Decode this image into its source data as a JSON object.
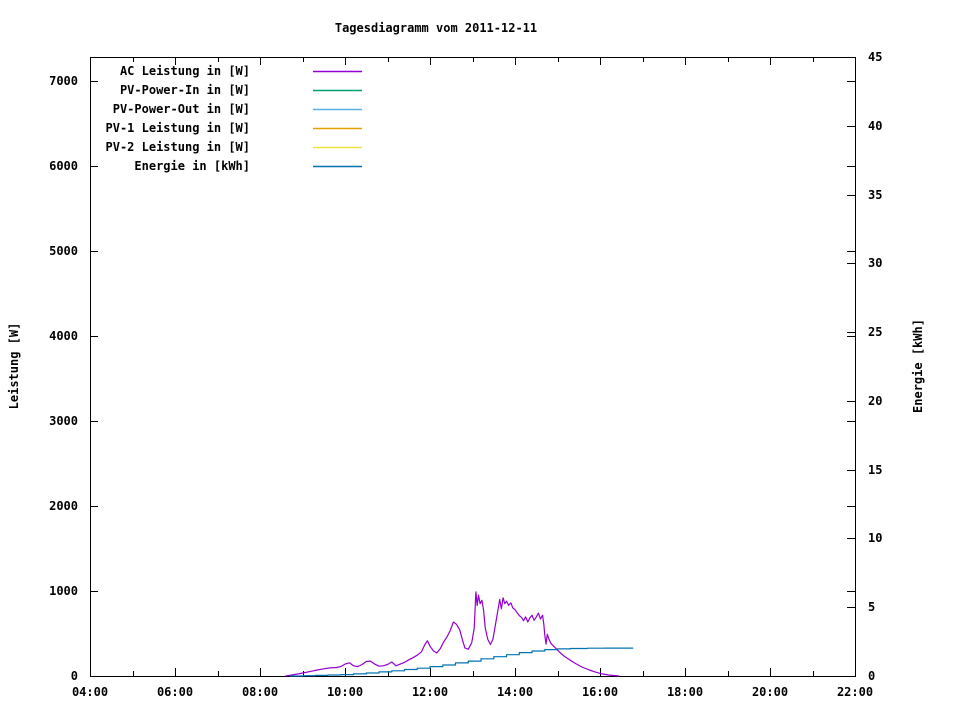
{
  "title": "Tagesdiagramm vom 2011-12-11",
  "axes": {
    "x": {
      "major_tick_labels": [
        "04:00",
        "06:00",
        "08:00",
        "10:00",
        "12:00",
        "14:00",
        "16:00",
        "18:00",
        "20:00",
        "22:00"
      ],
      "major_tick_hours": [
        4,
        6,
        8,
        10,
        12,
        14,
        16,
        18,
        20,
        22
      ],
      "minor_tick_hours": [
        5,
        7,
        9,
        11,
        13,
        15,
        17,
        19,
        21
      ]
    },
    "y_left": {
      "label": "Leistung [W]",
      "tick_values": [
        0,
        1000,
        2000,
        3000,
        4000,
        5000,
        6000,
        7000
      ],
      "tick_labels": [
        "0",
        "1000",
        "2000",
        "3000",
        "4000",
        "5000",
        "6000",
        "7000"
      ],
      "frame_top_value": 7282
    },
    "y_right": {
      "label": "Energie [kWh]",
      "tick_values": [
        0,
        5,
        10,
        15,
        20,
        25,
        30,
        35,
        40,
        45
      ],
      "tick_labels": [
        "0",
        "5",
        "10",
        "15",
        "20",
        "25",
        "30",
        "35",
        "40",
        "45"
      ],
      "frame_top_value": 45
    }
  },
  "legend": {
    "items": [
      {
        "label": "AC Leistung in [W]",
        "color": "#9400d3"
      },
      {
        "label": "PV-Power-In in [W]",
        "color": "#009e73"
      },
      {
        "label": "PV-Power-Out in [W]",
        "color": "#56b4e9"
      },
      {
        "label": "PV-1 Leistung in [W]",
        "color": "#e69f00"
      },
      {
        "label": "PV-2 Leistung in [W]",
        "color": "#f0e442"
      },
      {
        "label": "Energie in [kWh]",
        "color": "#0072b2"
      }
    ]
  },
  "chart_data": {
    "type": "line",
    "title": "Tagesdiagramm vom 2011-12-11",
    "xlabel": "",
    "x_unit": "hour_of_day",
    "xlim": [
      4,
      22
    ],
    "ylabel_left": "Leistung [W]",
    "ylim_left": [
      0,
      7282
    ],
    "ylabel_right": "Energie [kWh]",
    "ylim_right": [
      0,
      45
    ],
    "grid": false,
    "legend_position": "top-left-inside",
    "series": [
      {
        "name": "AC Leistung in [W]",
        "color": "#9400d3",
        "axis": "left",
        "step": false,
        "points": [
          [
            8.6,
            0
          ],
          [
            8.75,
            12
          ],
          [
            8.9,
            25
          ],
          [
            9.05,
            40
          ],
          [
            9.2,
            55
          ],
          [
            9.35,
            70
          ],
          [
            9.5,
            85
          ],
          [
            9.65,
            95
          ],
          [
            9.8,
            100
          ],
          [
            9.9,
            110
          ],
          [
            10.0,
            140
          ],
          [
            10.1,
            155
          ],
          [
            10.2,
            120
          ],
          [
            10.3,
            110
          ],
          [
            10.4,
            135
          ],
          [
            10.5,
            170
          ],
          [
            10.6,
            175
          ],
          [
            10.7,
            140
          ],
          [
            10.8,
            115
          ],
          [
            10.9,
            120
          ],
          [
            11.0,
            135
          ],
          [
            11.1,
            165
          ],
          [
            11.2,
            120
          ],
          [
            11.3,
            140
          ],
          [
            11.4,
            160
          ],
          [
            11.5,
            190
          ],
          [
            11.6,
            215
          ],
          [
            11.7,
            245
          ],
          [
            11.8,
            285
          ],
          [
            11.88,
            370
          ],
          [
            11.94,
            415
          ],
          [
            12.0,
            350
          ],
          [
            12.08,
            295
          ],
          [
            12.16,
            270
          ],
          [
            12.24,
            320
          ],
          [
            12.32,
            400
          ],
          [
            12.4,
            460
          ],
          [
            12.48,
            540
          ],
          [
            12.55,
            635
          ],
          [
            12.62,
            610
          ],
          [
            12.7,
            545
          ],
          [
            12.76,
            430
          ],
          [
            12.82,
            330
          ],
          [
            12.9,
            315
          ],
          [
            12.98,
            390
          ],
          [
            13.04,
            560
          ],
          [
            13.08,
            990
          ],
          [
            13.11,
            830
          ],
          [
            13.14,
            950
          ],
          [
            13.18,
            850
          ],
          [
            13.22,
            890
          ],
          [
            13.26,
            780
          ],
          [
            13.3,
            560
          ],
          [
            13.36,
            430
          ],
          [
            13.42,
            370
          ],
          [
            13.48,
            430
          ],
          [
            13.54,
            600
          ],
          [
            13.6,
            780
          ],
          [
            13.64,
            900
          ],
          [
            13.68,
            790
          ],
          [
            13.72,
            920
          ],
          [
            13.76,
            850
          ],
          [
            13.8,
            880
          ],
          [
            13.85,
            830
          ],
          [
            13.9,
            860
          ],
          [
            13.95,
            800
          ],
          [
            14.0,
            780
          ],
          [
            14.05,
            745
          ],
          [
            14.1,
            710
          ],
          [
            14.15,
            690
          ],
          [
            14.2,
            650
          ],
          [
            14.25,
            695
          ],
          [
            14.3,
            635
          ],
          [
            14.35,
            685
          ],
          [
            14.4,
            715
          ],
          [
            14.45,
            655
          ],
          [
            14.5,
            695
          ],
          [
            14.55,
            740
          ],
          [
            14.6,
            670
          ],
          [
            14.65,
            715
          ],
          [
            14.68,
            600
          ],
          [
            14.7,
            480
          ],
          [
            14.73,
            375
          ],
          [
            14.76,
            490
          ],
          [
            14.8,
            430
          ],
          [
            14.85,
            380
          ],
          [
            14.95,
            330
          ],
          [
            15.05,
            280
          ],
          [
            15.15,
            235
          ],
          [
            15.3,
            185
          ],
          [
            15.45,
            140
          ],
          [
            15.6,
            100
          ],
          [
            15.75,
            70
          ],
          [
            15.9,
            45
          ],
          [
            16.05,
            25
          ],
          [
            16.2,
            12
          ],
          [
            16.35,
            5
          ],
          [
            16.45,
            0
          ]
        ]
      },
      {
        "name": "PV-Power-In in [W]",
        "color": "#009e73",
        "axis": "left",
        "step": false,
        "points": []
      },
      {
        "name": "PV-Power-Out in [W]",
        "color": "#56b4e9",
        "axis": "left",
        "step": false,
        "points": []
      },
      {
        "name": "PV-1 Leistung in [W]",
        "color": "#e69f00",
        "axis": "left",
        "step": false,
        "points": []
      },
      {
        "name": "PV-2 Leistung in [W]",
        "color": "#f0e442",
        "axis": "left",
        "step": false,
        "points": []
      },
      {
        "name": "Energie in [kWh]",
        "color": "#0072b2",
        "axis": "right",
        "step": true,
        "points": [
          [
            8.7,
            0
          ],
          [
            9.0,
            0.02
          ],
          [
            9.3,
            0.04
          ],
          [
            9.6,
            0.07
          ],
          [
            9.9,
            0.1
          ],
          [
            10.2,
            0.15
          ],
          [
            10.5,
            0.22
          ],
          [
            10.8,
            0.3
          ],
          [
            11.1,
            0.38
          ],
          [
            11.4,
            0.47
          ],
          [
            11.7,
            0.57
          ],
          [
            12.0,
            0.68
          ],
          [
            12.3,
            0.8
          ],
          [
            12.6,
            0.95
          ],
          [
            12.9,
            1.08
          ],
          [
            13.2,
            1.25
          ],
          [
            13.5,
            1.4
          ],
          [
            13.8,
            1.55
          ],
          [
            14.1,
            1.7
          ],
          [
            14.4,
            1.82
          ],
          [
            14.7,
            1.92
          ],
          [
            15.0,
            1.97
          ],
          [
            15.3,
            2.0
          ],
          [
            15.7,
            2.02
          ],
          [
            16.1,
            2.03
          ],
          [
            16.45,
            2.03
          ],
          [
            16.78,
            2.03
          ]
        ]
      }
    ]
  }
}
